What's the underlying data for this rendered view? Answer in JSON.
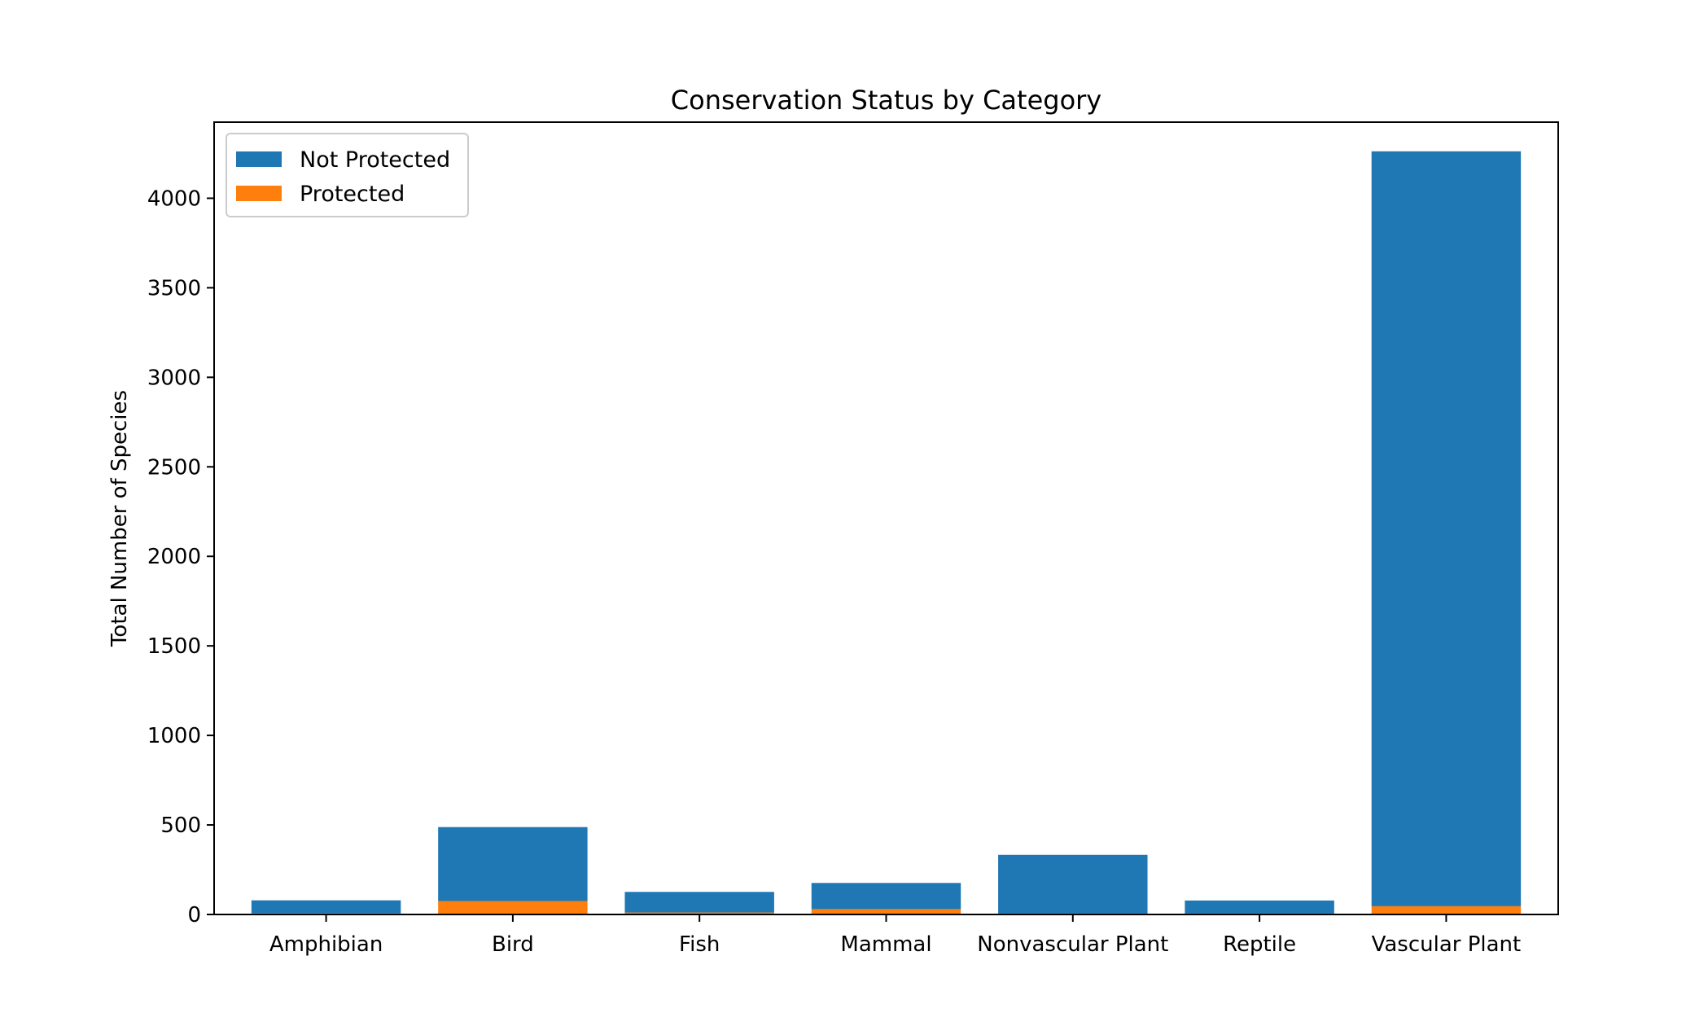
{
  "chart_data": {
    "type": "bar",
    "stacked": true,
    "title": "Conservation Status by Category",
    "xlabel": "",
    "ylabel": "Total Number of Species",
    "categories": [
      "Amphibian",
      "Bird",
      "Fish",
      "Mammal",
      "Nonvascular Plant",
      "Reptile",
      "Vascular Plant"
    ],
    "series": [
      {
        "name": "Protected",
        "color": "#ff7f0e",
        "values": [
          7,
          75,
          11,
          30,
          5,
          5,
          46
        ]
      },
      {
        "name": "Not Protected",
        "color": "#1f77b4",
        "values": [
          72,
          413,
          115,
          146,
          328,
          73,
          4216
        ]
      }
    ],
    "legend_order": [
      "Not Protected",
      "Protected"
    ],
    "ylim": [
      0,
      4425
    ],
    "yticks": [
      0,
      500,
      1000,
      1500,
      2000,
      2500,
      3000,
      3500,
      4000
    ],
    "legend_position": "top-left",
    "grid": false
  }
}
